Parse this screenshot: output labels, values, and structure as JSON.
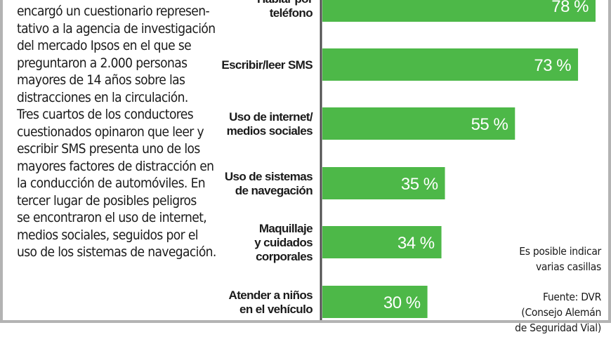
{
  "intro": {
    "lines": [
      "encargó un cuestionario represen-",
      "tativo a la agencia de investigación",
      "del mercado Ipsos en el que se",
      "preguntaron a 2.000 personas",
      "mayores de 14 años sobre las",
      "distracciones en la circulación.",
      "Tres cuartos de los conductores",
      "cuestionados opinaron que leer y",
      "escribir SMS presenta uno de los",
      "mayores factores de distracción en",
      "la conducción de automóviles. En",
      "tercer lugar de posibles peligros",
      "se encontraron el uso de internet,",
      "medios sociales, seguidos por el",
      "uso de los sistemas de navegación."
    ]
  },
  "notes": {
    "multiple_choice": [
      "Es posible indicar",
      "varias casillas"
    ],
    "source": [
      "Fuente: DVR",
      "(Consejo Alemán",
      "de Seguridad Vial)"
    ]
  },
  "colors": {
    "bar": "#4db848",
    "axis": "#4d4d4d",
    "frame": "#b3b3b3"
  },
  "chart_data": {
    "type": "bar",
    "orientation": "horizontal",
    "categories": [
      [
        "Hablar por",
        "teléfono"
      ],
      [
        "Escribir/leer SMS"
      ],
      [
        "Uso de internet/",
        "medios sociales"
      ],
      [
        "Uso de sistemas",
        "de navegación"
      ],
      [
        "Maquillaje",
        "y cuidados",
        "corporales"
      ],
      [
        "Atender a niños",
        "en el vehículo"
      ]
    ],
    "values": [
      78,
      73,
      55,
      35,
      34,
      30
    ],
    "value_labels": [
      "78 %",
      "73 %",
      "55 %",
      "35 %",
      "34 %",
      "30 %"
    ],
    "unit": "%",
    "xlim": [
      0,
      100
    ]
  }
}
